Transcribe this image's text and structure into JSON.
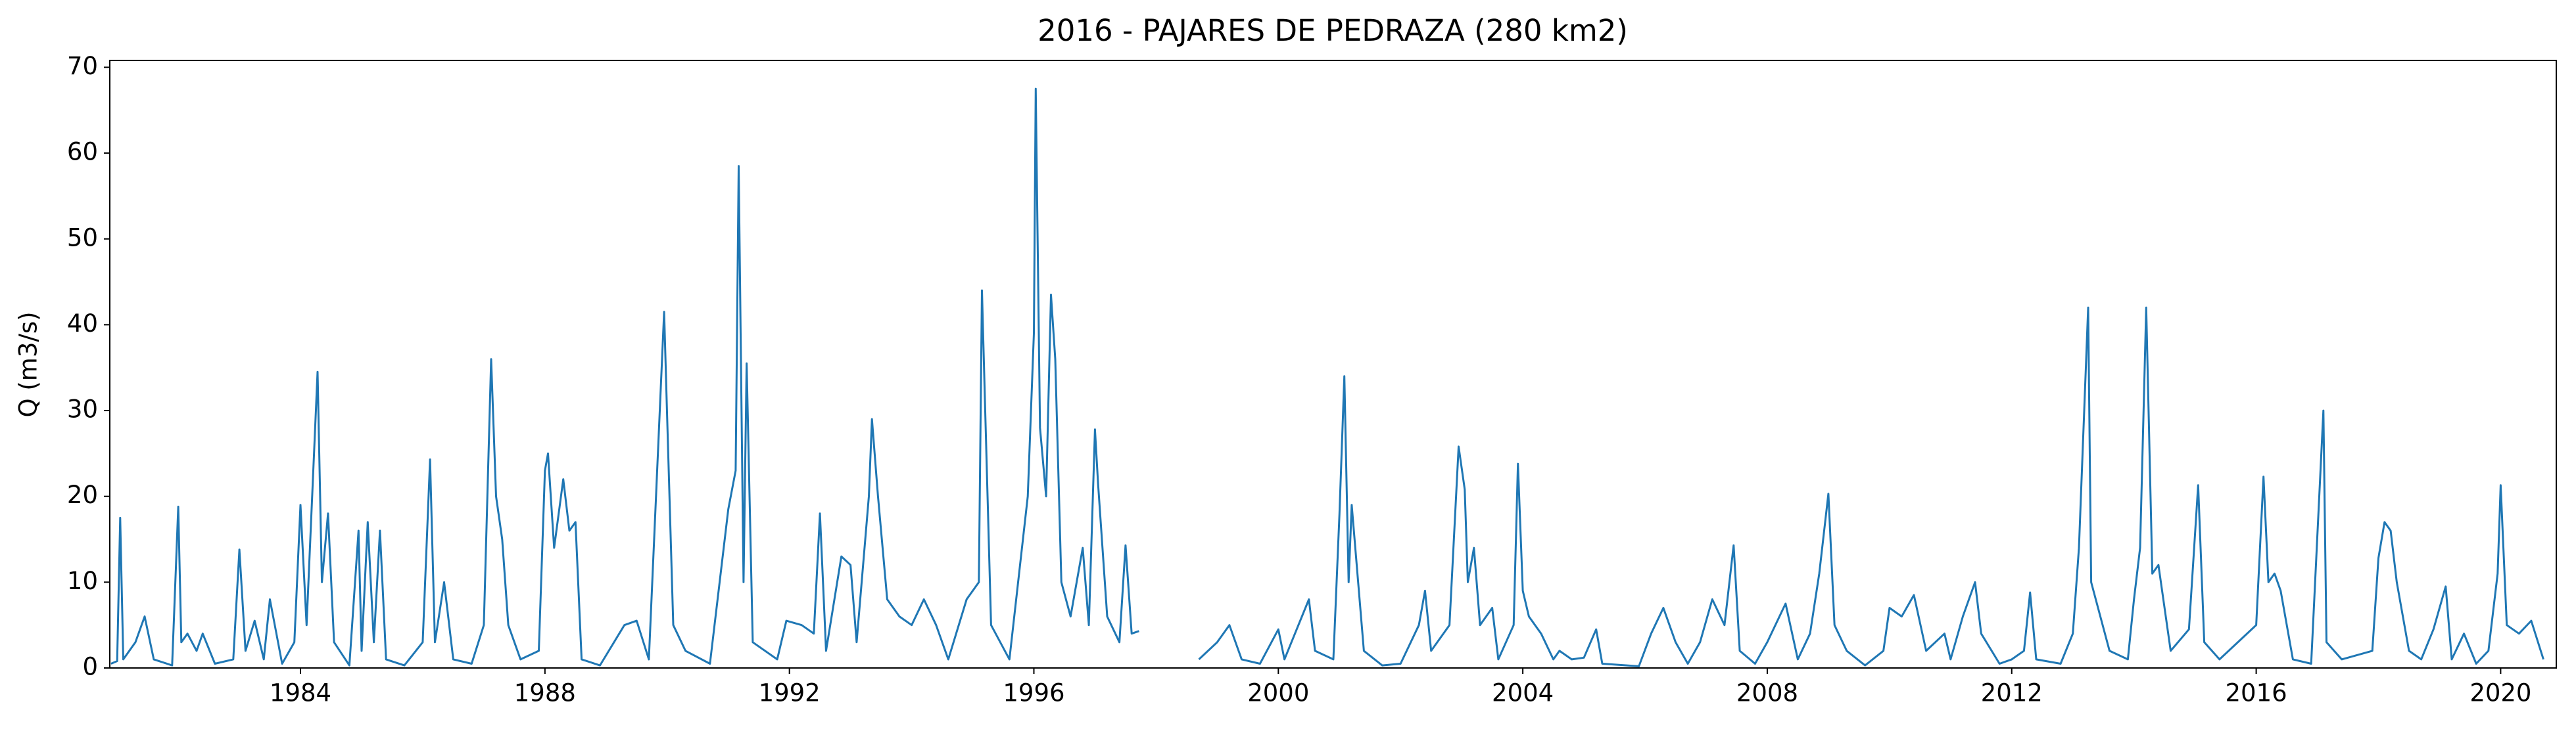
{
  "chart_data": {
    "type": "line",
    "title": "2016 - PAJARES DE PEDRAZA (280 km2)",
    "ylabel": "Q (m3/s)",
    "xlim": [
      1980.88,
      2020.91
    ],
    "ylim": [
      0,
      70.8
    ],
    "xticks": [
      1984,
      1988,
      1992,
      1996,
      2000,
      2004,
      2008,
      2012,
      2016,
      2020
    ],
    "yticks": [
      0,
      10,
      20,
      30,
      40,
      50,
      60,
      70
    ],
    "grid": false,
    "series": [
      {
        "color": "#1f77b4",
        "x": [
          1980.9,
          1981.0,
          1981.05,
          1981.1,
          1981.3,
          1981.45,
          1981.6,
          1981.9,
          1982.0,
          1982.05,
          1982.15,
          1982.3,
          1982.4,
          1982.6,
          1982.9,
          1983.0,
          1983.1,
          1983.25,
          1983.4,
          1983.5,
          1983.7,
          1983.9,
          1984.0,
          1984.1,
          1984.28,
          1984.35,
          1984.45,
          1984.55,
          1984.8,
          1984.95,
          1985.0,
          1985.1,
          1985.2,
          1985.3,
          1985.4,
          1985.7,
          1986.0,
          1986.12,
          1986.2,
          1986.35,
          1986.5,
          1986.8,
          1987.0,
          1987.12,
          1987.2,
          1987.3,
          1987.4,
          1987.6,
          1987.9,
          1988.0,
          1988.05,
          1988.15,
          1988.3,
          1988.4,
          1988.5,
          1988.6,
          1988.9,
          1989.3,
          1989.5,
          1989.7,
          1989.95,
          1990.0,
          1990.1,
          1990.3,
          1990.7,
          1991.0,
          1991.12,
          1991.17,
          1991.25,
          1991.3,
          1991.4,
          1991.8,
          1991.95,
          1992.2,
          1992.4,
          1992.5,
          1992.6,
          1992.85,
          1993.0,
          1993.1,
          1993.3,
          1993.35,
          1993.45,
          1993.6,
          1993.8,
          1994.0,
          1994.2,
          1994.4,
          1994.6,
          1994.9,
          1995.1,
          1995.15,
          1995.2,
          1995.3,
          1995.6,
          1995.9,
          1996.0,
          1996.03,
          1996.1,
          1996.2,
          1996.28,
          1996.35,
          1996.45,
          1996.6,
          1996.8,
          1996.9,
          1997.0,
          1997.05,
          1997.2,
          1997.4,
          1997.5,
          1997.6,
          1997.72,
          1998.2,
          1998.7,
          1999.0,
          1999.2,
          1999.4,
          1999.7,
          2000.0,
          2000.1,
          2000.5,
          2000.6,
          2000.9,
          2001.0,
          2001.08,
          2001.15,
          2001.2,
          2001.4,
          2001.7,
          2002.0,
          2002.3,
          2002.4,
          2002.5,
          2002.8,
          2002.95,
          2003.05,
          2003.1,
          2003.2,
          2003.3,
          2003.5,
          2003.6,
          2003.85,
          2003.92,
          2004.0,
          2004.1,
          2004.3,
          2004.5,
          2004.6,
          2004.8,
          2005.0,
          2005.2,
          2005.3,
          2005.9,
          2006.1,
          2006.3,
          2006.5,
          2006.7,
          2006.9,
          2007.1,
          2007.3,
          2007.45,
          2007.55,
          2007.8,
          2008.0,
          2008.3,
          2008.5,
          2008.7,
          2008.85,
          2009.0,
          2009.1,
          2009.3,
          2009.6,
          2009.9,
          2010.0,
          2010.2,
          2010.4,
          2010.6,
          2010.9,
          2011.0,
          2011.2,
          2011.4,
          2011.5,
          2011.8,
          2012.0,
          2012.2,
          2012.3,
          2012.4,
          2012.8,
          2013.0,
          2013.1,
          2013.25,
          2013.3,
          2013.6,
          2013.9,
          2014.0,
          2014.1,
          2014.2,
          2014.3,
          2014.4,
          2014.6,
          2014.9,
          2015.05,
          2015.15,
          2015.4,
          2016.0,
          2016.12,
          2016.2,
          2016.3,
          2016.4,
          2016.6,
          2016.9,
          2017.1,
          2017.15,
          2017.4,
          2017.9,
          2018.0,
          2018.1,
          2018.2,
          2018.3,
          2018.5,
          2018.7,
          2018.9,
          2019.1,
          2019.2,
          2019.4,
          2019.6,
          2019.8,
          2019.95,
          2020.0,
          2020.1,
          2020.3,
          2020.5,
          2020.7
        ],
        "values": [
          0.5,
          0.8,
          17.5,
          1,
          3,
          6,
          1,
          0.3,
          18.8,
          3,
          4,
          2,
          4,
          0.5,
          1,
          13.8,
          2,
          5.5,
          1,
          8,
          0.5,
          3,
          19,
          5,
          34.5,
          10,
          18,
          3,
          0.3,
          16,
          2,
          17,
          3,
          16,
          1,
          0.3,
          3,
          24.3,
          3,
          10,
          1,
          0.5,
          5,
          36,
          20,
          15,
          5,
          1,
          2,
          23,
          25,
          14,
          22,
          16,
          17,
          1,
          0.3,
          5,
          5.5,
          1,
          41.5,
          29,
          5,
          2,
          0.5,
          18.5,
          23,
          58.5,
          10,
          35.5,
          3,
          1,
          5.5,
          5,
          4,
          18,
          2,
          13,
          12,
          3,
          20,
          29,
          20,
          8,
          6,
          5,
          8,
          5,
          1,
          8,
          10,
          44,
          31,
          5,
          1,
          20,
          39,
          67.5,
          28,
          20,
          43.5,
          36,
          10,
          6,
          14,
          5,
          27.8,
          21.5,
          6,
          3,
          14.3,
          4,
          4.3,
          null,
          1,
          3,
          5,
          1,
          0.5,
          4.5,
          1,
          8,
          2,
          1,
          18,
          34,
          10,
          19,
          2,
          0.3,
          0.5,
          5,
          9,
          2,
          5,
          25.8,
          20.8,
          10,
          14,
          5,
          7,
          1,
          5,
          23.8,
          9,
          6,
          4,
          1,
          2,
          1,
          1.2,
          4.5,
          0.5,
          0.2,
          4,
          7,
          3,
          0.5,
          3,
          8,
          5,
          14.3,
          2,
          0.5,
          3,
          7.5,
          1,
          4,
          11,
          20.3,
          5,
          2,
          0.3,
          2,
          7,
          6,
          8.5,
          2,
          4,
          1,
          6,
          10,
          4,
          0.5,
          1,
          2,
          8.8,
          1,
          0.5,
          4,
          14,
          42,
          10,
          2,
          1,
          8,
          14,
          42,
          11,
          12,
          2,
          4.5,
          21.3,
          3,
          1,
          5,
          22.3,
          10,
          11,
          9,
          1,
          0.5,
          30,
          3,
          1,
          2,
          12.8,
          17,
          16,
          10,
          2,
          1,
          4.5,
          9.5,
          1,
          4,
          0.5,
          2,
          11,
          21.3,
          5,
          4,
          5.5,
          1
        ]
      }
    ]
  }
}
